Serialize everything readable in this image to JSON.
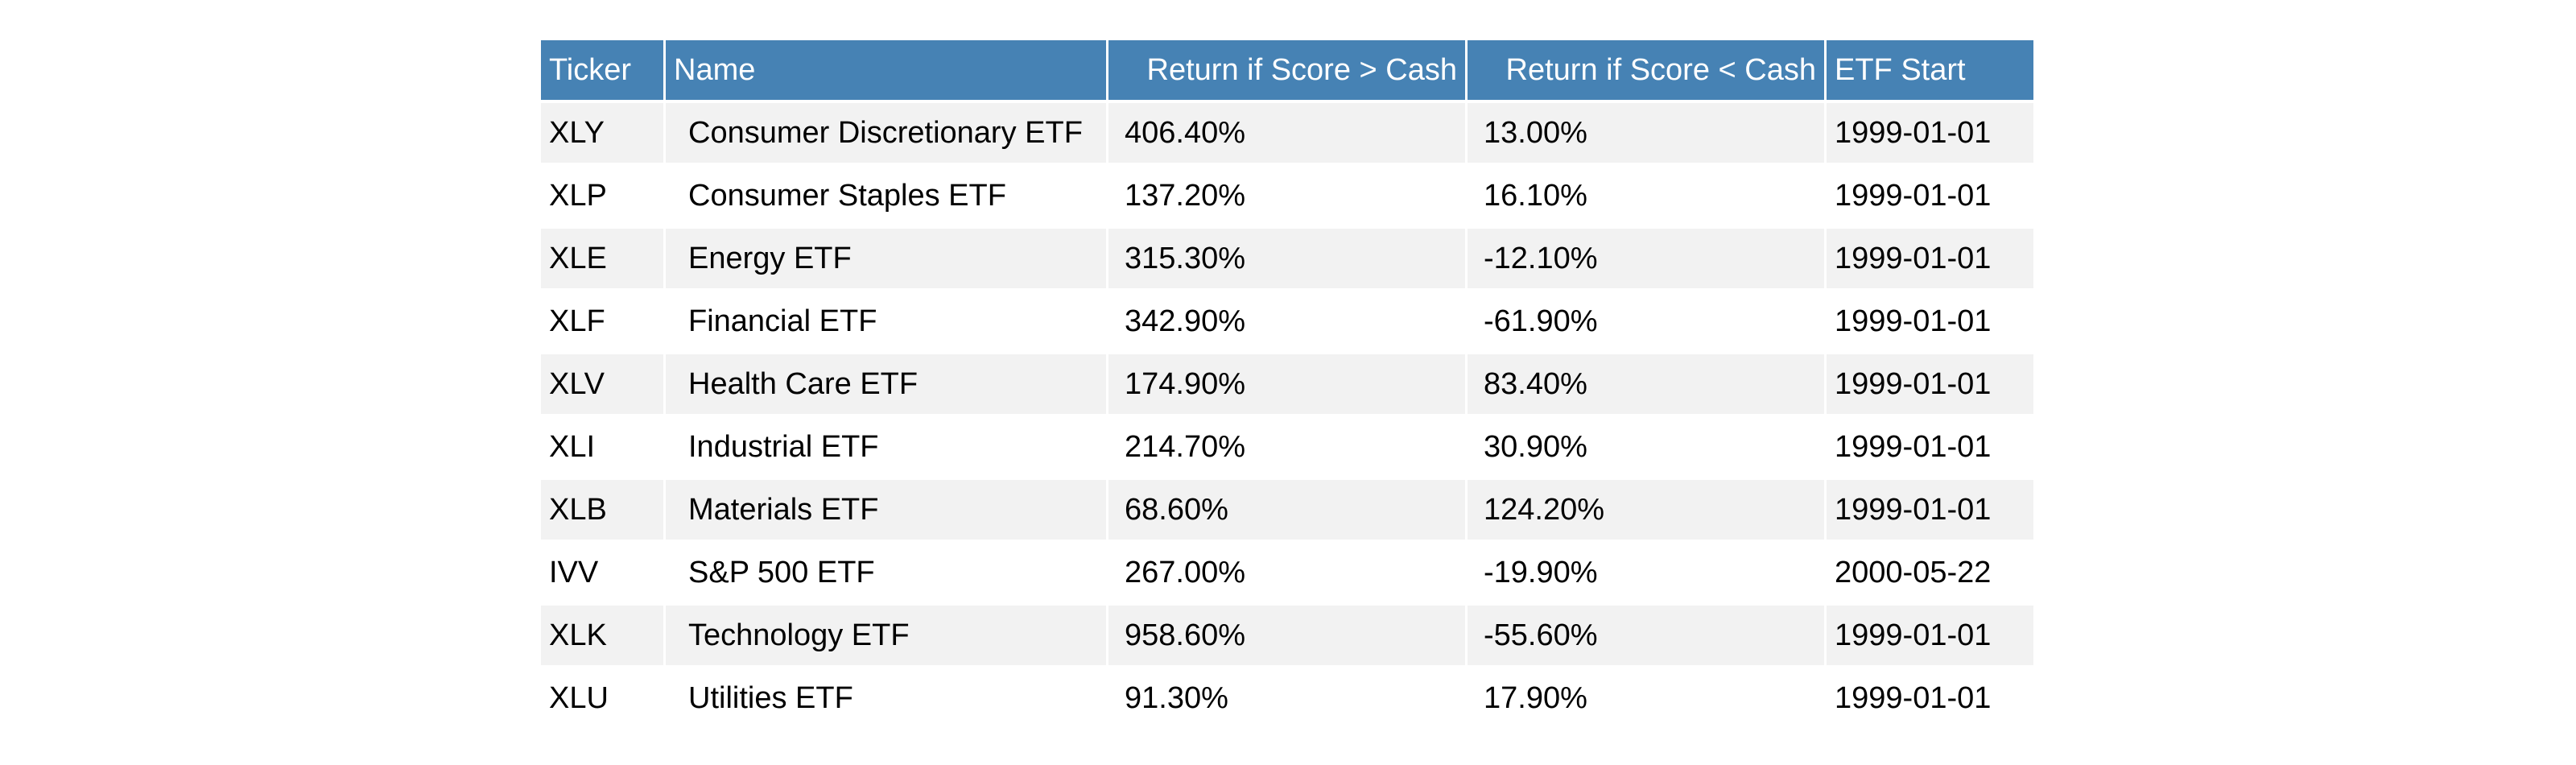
{
  "chart_data": {
    "type": "table",
    "columns": [
      "Ticker",
      "Name",
      "Return if Score > Cash",
      "Return if Score < Cash",
      "ETF Start"
    ],
    "rows": [
      [
        "XLY",
        "Consumer Discretionary ETF",
        "406.40%",
        "13.00%",
        "1999-01-01"
      ],
      [
        "XLP",
        "Consumer Staples ETF",
        "137.20%",
        "16.10%",
        "1999-01-01"
      ],
      [
        "XLE",
        "Energy ETF",
        "315.30%",
        "-12.10%",
        "1999-01-01"
      ],
      [
        "XLF",
        "Financial ETF",
        "342.90%",
        "-61.90%",
        "1999-01-01"
      ],
      [
        "XLV",
        "Health Care ETF",
        "174.90%",
        "83.40%",
        "1999-01-01"
      ],
      [
        "XLI",
        "Industrial ETF",
        "214.70%",
        "30.90%",
        "1999-01-01"
      ],
      [
        "XLB",
        "Materials ETF",
        "68.60%",
        "124.20%",
        "1999-01-01"
      ],
      [
        "IVV",
        "S&P 500 ETF",
        "267.00%",
        "-19.90%",
        "2000-05-22"
      ],
      [
        "XLK",
        "Technology ETF",
        "958.60%",
        "-55.60%",
        "1999-01-01"
      ],
      [
        "XLU",
        "Utilities ETF",
        "91.30%",
        "17.90%",
        "1999-01-01"
      ]
    ],
    "colors": {
      "header_bg": "#4682b4",
      "header_text": "#ffffff",
      "row_alt_bg": "#f2f2f2",
      "row_bg": "#ffffff"
    }
  }
}
